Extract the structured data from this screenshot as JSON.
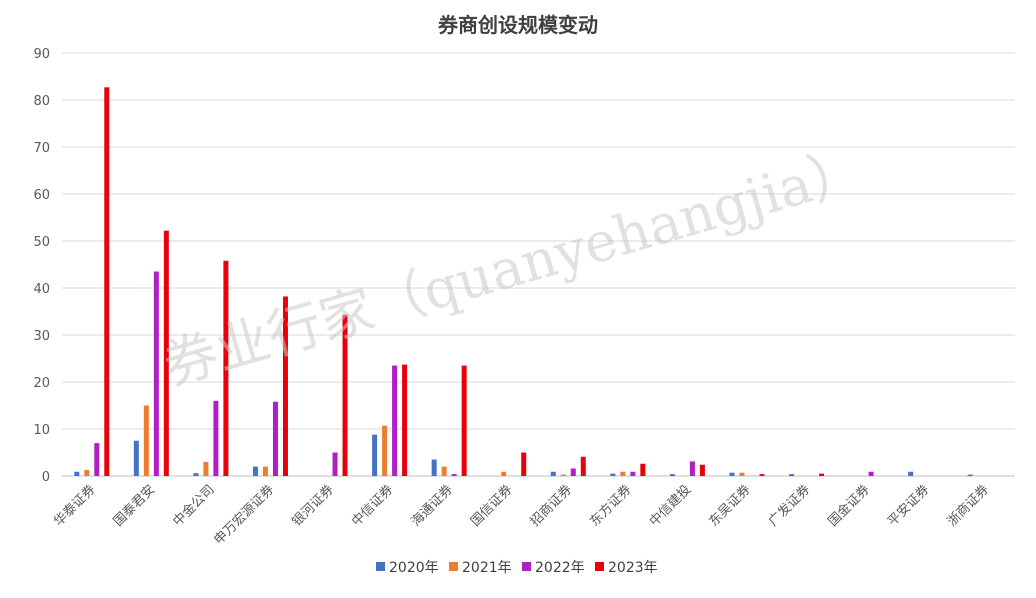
{
  "chart_data": {
    "type": "bar",
    "title": "券商创设规模变动",
    "watermark": "券业行家（quanyehangjia）",
    "categories": [
      "华泰证券",
      "国泰君安",
      "中金公司",
      "申万宏源证券",
      "银河证券",
      "中信证券",
      "海通证券",
      "国信证券",
      "招商证券",
      "东方证券",
      "中信建投",
      "东吴证券",
      "广发证券",
      "国金证券",
      "平安证券",
      "浙商证券"
    ],
    "series": [
      {
        "name": "2020年",
        "color": "#4472c4",
        "values": [
          0.9,
          7.5,
          0.6,
          2.0,
          0,
          8.8,
          3.5,
          0,
          0.9,
          0.5,
          0.4,
          0.7,
          0.4,
          0,
          0.9,
          0.3
        ]
      },
      {
        "name": "2021年",
        "color": "#ed7d31",
        "values": [
          1.3,
          15.0,
          3.0,
          2.0,
          0,
          10.7,
          2.0,
          0.9,
          0.3,
          0.9,
          0,
          0.7,
          0,
          0,
          0,
          0
        ]
      },
      {
        "name": "2022年",
        "color": "#b01ec8",
        "values": [
          7.0,
          43.5,
          16.0,
          15.8,
          5.0,
          23.5,
          0.4,
          0,
          1.6,
          0.9,
          3.1,
          0,
          0,
          0.9,
          0,
          0
        ]
      },
      {
        "name": "2023年",
        "color": "#e8000b",
        "values": [
          82.7,
          52.2,
          45.8,
          38.2,
          34.3,
          23.7,
          23.5,
          5.0,
          4.1,
          2.6,
          2.4,
          0.4,
          0.5,
          0,
          0,
          0
        ]
      }
    ],
    "ylim": [
      0,
      90
    ],
    "yticks": [
      0,
      10,
      20,
      30,
      40,
      50,
      60,
      70,
      80,
      90
    ],
    "grid": true,
    "legend": "bottom"
  }
}
